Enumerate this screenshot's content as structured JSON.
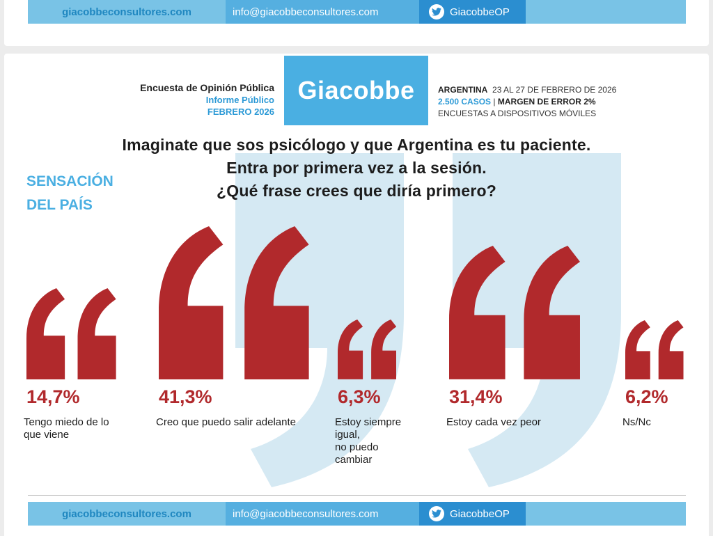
{
  "footer": {
    "website": "giacobbeconsultores.com",
    "email": "info@giacobbeconsultores.com",
    "twitter": "GiacobbeOP",
    "twitter_icon": "twitter-bird-icon"
  },
  "header": {
    "left_line1": "Encuesta de Opinión Pública",
    "left_line2": "Informe Público",
    "left_line3": "FEBRERO 2026",
    "logo": "Giacobbe",
    "country": "ARGENTINA",
    "dates": "23 AL 27 DE FEBRERO DE 2026",
    "cases": "2.500 CASOS",
    "sep": "|",
    "margin": "MARGEN DE ERROR 2%",
    "method": "ENCUESTAS A DISPOSITIVOS MÓVILES"
  },
  "question": {
    "line1": "Imaginate que sos psicólogo y que Argentina es tu paciente.",
    "line2": "Entra por primera vez a la sesión.",
    "line3": "¿Qué frase crees que diría primero?"
  },
  "side_title": {
    "line1": "SENSACIÓN",
    "line2": "DEL PAÍS"
  },
  "colors": {
    "quote_red": "#b1292c",
    "brand_blue": "#4aafe2",
    "watermark_blue": "#d5e9f3"
  },
  "chart_data": {
    "type": "bar",
    "categories": [
      "Tengo miedo de lo que viene",
      "Creo que puedo salir adelante",
      "Estoy siempre igual, no puedo cambiar",
      "Estoy cada vez peor",
      "Ns/Nc"
    ],
    "values": [
      14.7,
      41.3,
      6.3,
      31.4,
      6.2
    ],
    "value_labels": [
      "14,7%",
      "41,3%",
      "6,3%",
      "31,4%",
      "6,2%"
    ],
    "label_lines": [
      [
        "Tengo miedo de lo",
        "que viene"
      ],
      [
        "Creo que puedo salir adelante"
      ],
      [
        "Estoy siempre",
        "igual,",
        "no puedo",
        "cambiar"
      ],
      [
        "Estoy cada vez peor"
      ],
      [
        "Ns/Nc"
      ]
    ],
    "unit": "%"
  }
}
